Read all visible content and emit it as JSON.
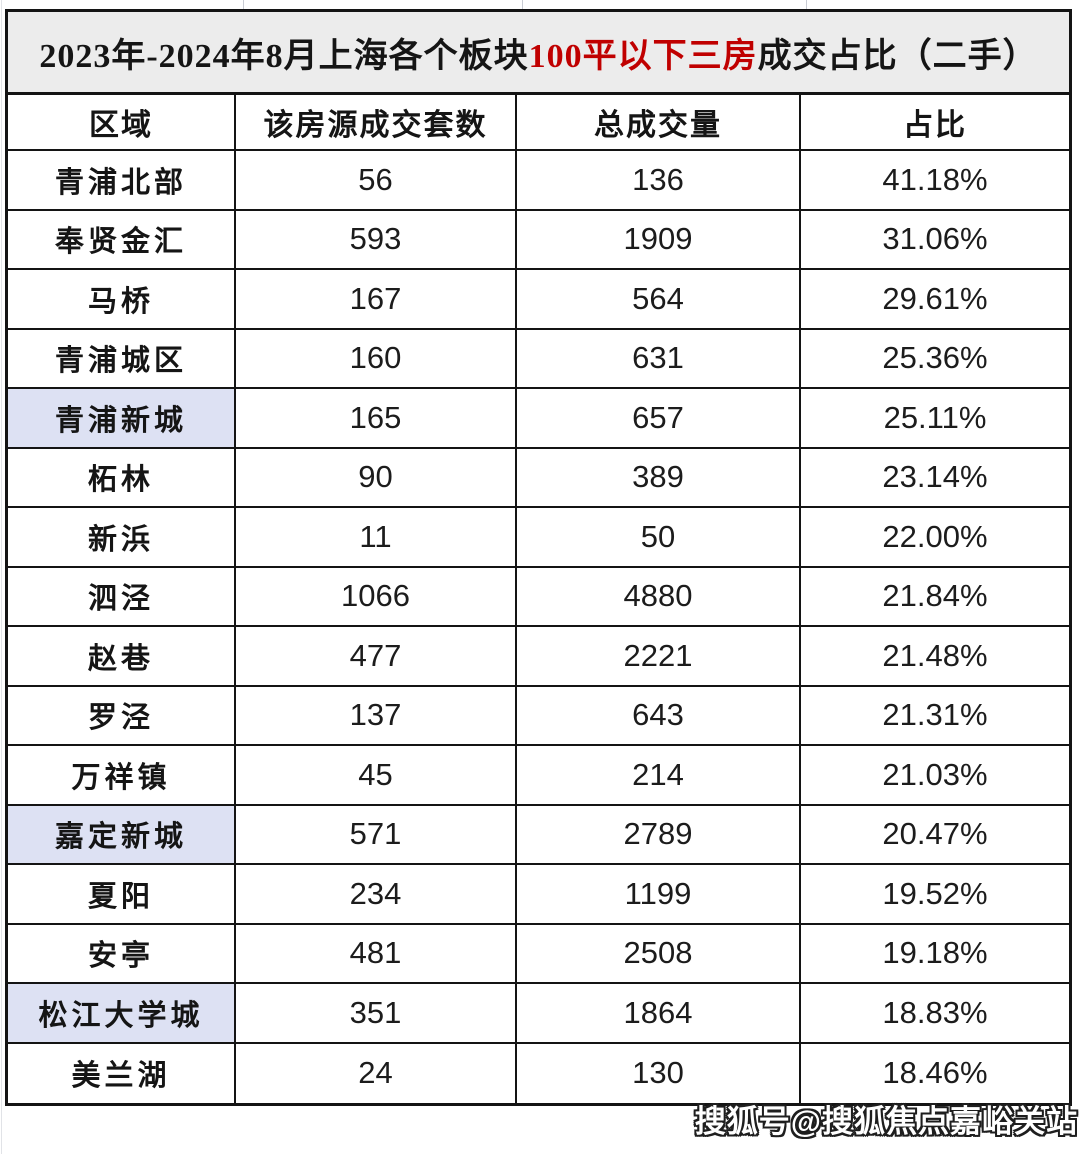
{
  "title": {
    "prefix": "2023年-2024年8月上海各个板块",
    "highlight": "100平以下三房",
    "suffix": "成交占比（二手）",
    "highlight_color": "#c00000",
    "background_color": "#ececec"
  },
  "table": {
    "columns": [
      "区域",
      "该房源成交套数",
      "总成交量",
      "占比"
    ],
    "highlight_color": "#dde1f3",
    "rows": [
      {
        "region": "青浦北部",
        "deals": "56",
        "total": "136",
        "share": "41.18%",
        "highlighted": false
      },
      {
        "region": "奉贤金汇",
        "deals": "593",
        "total": "1909",
        "share": "31.06%",
        "highlighted": false
      },
      {
        "region": "马桥",
        "deals": "167",
        "total": "564",
        "share": "29.61%",
        "highlighted": false
      },
      {
        "region": "青浦城区",
        "deals": "160",
        "total": "631",
        "share": "25.36%",
        "highlighted": false
      },
      {
        "region": "青浦新城",
        "deals": "165",
        "total": "657",
        "share": "25.11%",
        "highlighted": true
      },
      {
        "region": "柘林",
        "deals": "90",
        "total": "389",
        "share": "23.14%",
        "highlighted": false
      },
      {
        "region": "新浜",
        "deals": "11",
        "total": "50",
        "share": "22.00%",
        "highlighted": false
      },
      {
        "region": "泗泾",
        "deals": "1066",
        "total": "4880",
        "share": "21.84%",
        "highlighted": false
      },
      {
        "region": "赵巷",
        "deals": "477",
        "total": "2221",
        "share": "21.48%",
        "highlighted": false
      },
      {
        "region": "罗泾",
        "deals": "137",
        "total": "643",
        "share": "21.31%",
        "highlighted": false
      },
      {
        "region": "万祥镇",
        "deals": "45",
        "total": "214",
        "share": "21.03%",
        "highlighted": false
      },
      {
        "region": "嘉定新城",
        "deals": "571",
        "total": "2789",
        "share": "20.47%",
        "highlighted": true
      },
      {
        "region": "夏阳",
        "deals": "234",
        "total": "1199",
        "share": "19.52%",
        "highlighted": false
      },
      {
        "region": "安亭",
        "deals": "481",
        "total": "2508",
        "share": "19.18%",
        "highlighted": false
      },
      {
        "region": "松江大学城",
        "deals": "351",
        "total": "1864",
        "share": "18.83%",
        "highlighted": true
      },
      {
        "region": "美兰湖",
        "deals": "24",
        "total": "130",
        "share": "18.46%",
        "highlighted": false
      }
    ]
  },
  "watermark": "搜狐号@搜狐焦点嘉峪关站",
  "chart_data": {
    "type": "table",
    "title": "2023年-2024年8月上海各个板块100平以下三房成交占比（二手）",
    "columns": [
      "区域",
      "该房源成交套数",
      "总成交量",
      "占比"
    ],
    "rows": [
      [
        "青浦北部",
        56,
        136,
        "41.18%"
      ],
      [
        "奉贤金汇",
        593,
        1909,
        "31.06%"
      ],
      [
        "马桥",
        167,
        564,
        "29.61%"
      ],
      [
        "青浦城区",
        160,
        631,
        "25.36%"
      ],
      [
        "青浦新城",
        165,
        657,
        "25.11%"
      ],
      [
        "柘林",
        90,
        389,
        "23.14%"
      ],
      [
        "新浜",
        11,
        50,
        "22.00%"
      ],
      [
        "泗泾",
        1066,
        4880,
        "21.84%"
      ],
      [
        "赵巷",
        477,
        2221,
        "21.48%"
      ],
      [
        "罗泾",
        137,
        643,
        "21.31%"
      ],
      [
        "万祥镇",
        45,
        214,
        "21.03%"
      ],
      [
        "嘉定新城",
        571,
        2789,
        "20.47%"
      ],
      [
        "夏阳",
        234,
        1199,
        "19.52%"
      ],
      [
        "安亭",
        481,
        2508,
        "19.18%"
      ],
      [
        "松江大学城",
        351,
        1864,
        "18.83%"
      ],
      [
        "美兰湖",
        24,
        130,
        "18.46%"
      ]
    ],
    "highlighted_regions": [
      "青浦新城",
      "嘉定新城",
      "松江大学城"
    ]
  }
}
